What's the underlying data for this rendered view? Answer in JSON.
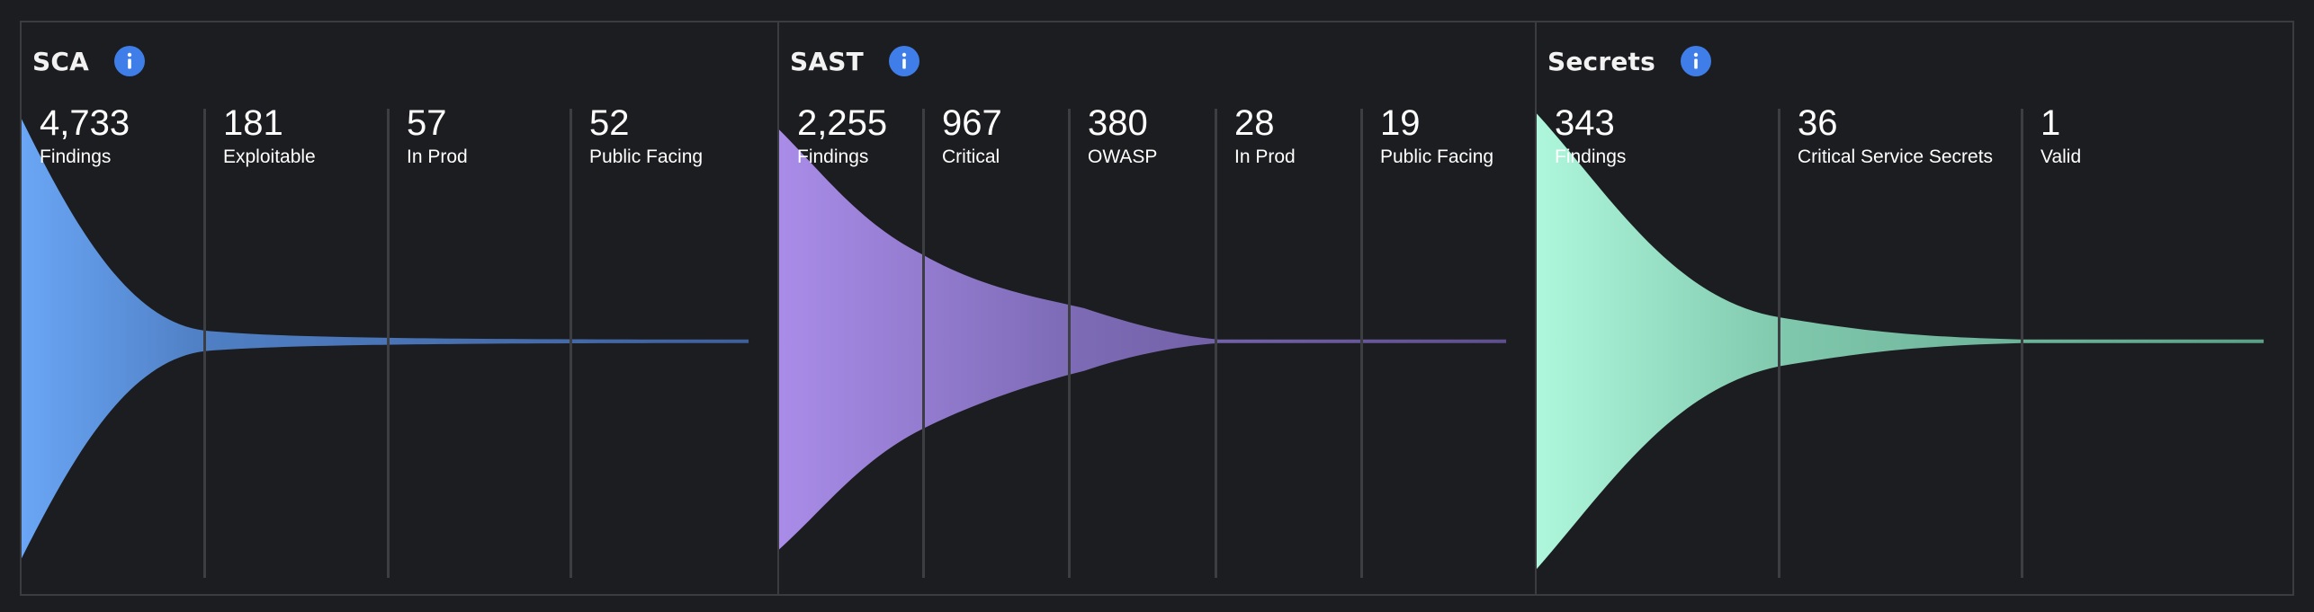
{
  "colors": {
    "background": "#1c1d20",
    "border": "#3b3c40",
    "info_icon": "#3f7ee8",
    "sca_gradient": [
      "#6aa6f5",
      "#3f5f9a"
    ],
    "sast_gradient": [
      "#a98ce8",
      "#5e4f8c"
    ],
    "secrets_gradient": [
      "#aef7dc",
      "#5b9f87"
    ]
  },
  "panels": [
    {
      "title": "SCA",
      "info_icon": "info-icon",
      "metrics": [
        {
          "value": "4,733",
          "label": "Findings"
        },
        {
          "value": "181",
          "label": "Exploitable"
        },
        {
          "value": "57",
          "label": "In Prod"
        },
        {
          "value": "52",
          "label": "Public Facing"
        }
      ]
    },
    {
      "title": "SAST",
      "info_icon": "info-icon",
      "metrics": [
        {
          "value": "2,255",
          "label": "Findings"
        },
        {
          "value": "967",
          "label": "Critical"
        },
        {
          "value": "380",
          "label": "OWASP"
        },
        {
          "value": "28",
          "label": "In Prod"
        },
        {
          "value": "19",
          "label": "Public Facing"
        }
      ]
    },
    {
      "title": "Secrets",
      "info_icon": "info-icon",
      "metrics": [
        {
          "value": "343",
          "label": "Findings"
        },
        {
          "value": "36",
          "label": "Critical Service Secrets"
        },
        {
          "value": "1",
          "label": "Valid"
        }
      ]
    }
  ]
}
